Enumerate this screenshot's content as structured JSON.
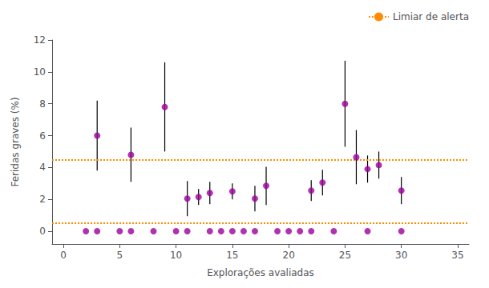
{
  "chart_data": {
    "type": "scatter",
    "title": "",
    "xlabel": "Explorações avaliadas",
    "ylabel": "Feridas graves (%)",
    "xlim": [
      -1,
      36
    ],
    "ylim": [
      -0.8,
      12
    ],
    "xticks": [
      0,
      5,
      10,
      15,
      20,
      25,
      30,
      35
    ],
    "yticks": [
      0,
      2,
      4,
      6,
      8,
      10,
      12
    ],
    "grid": false,
    "legend": "upper right",
    "series": [
      {
        "type": "scatter",
        "color": "#9B009B",
        "marker": "circle",
        "x": [
          3,
          6,
          9,
          11,
          12,
          13,
          15,
          17,
          18,
          22,
          23,
          25,
          26,
          27,
          28,
          30,
          2,
          3,
          5,
          6,
          8,
          10,
          11,
          13,
          14,
          15,
          16,
          17,
          19,
          20,
          21,
          22,
          24,
          27,
          30
        ],
        "values": [
          6.0,
          4.8,
          7.8,
          2.05,
          2.15,
          2.4,
          2.5,
          2.05,
          2.85,
          2.55,
          3.05,
          8.0,
          4.65,
          3.9,
          4.15,
          2.55,
          0,
          0,
          0,
          0,
          0,
          0,
          0,
          0,
          0,
          0,
          0,
          0,
          0,
          0,
          0,
          0,
          0,
          0,
          0
        ],
        "yerr": [
          2.2,
          1.7,
          2.8,
          1.1,
          0.5,
          0.7,
          0.5,
          0.8,
          1.2,
          0.65,
          0.8,
          2.7,
          1.7,
          0.85,
          0.85,
          0.85,
          null,
          null,
          null,
          null,
          null,
          null,
          null,
          null,
          null,
          null,
          null,
          null,
          null,
          null,
          null,
          null,
          null,
          null,
          null
        ]
      },
      {
        "type": "hline",
        "name": "Limiar de alerta",
        "color": "#FF8C00",
        "line_style": "dotted",
        "values": [
          4.5,
          0.5
        ]
      }
    ]
  }
}
